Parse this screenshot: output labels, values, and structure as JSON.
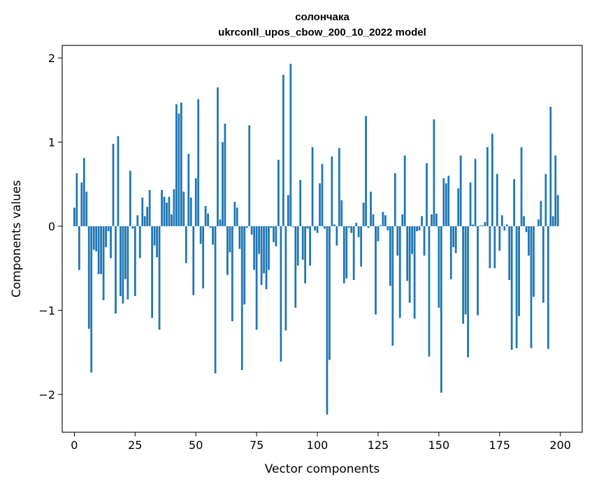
{
  "chart_data": {
    "type": "bar",
    "title_line1": "солончака",
    "title_line2": "ukrconll_upos_cbow_200_10_2022 model",
    "xlabel": "Vector components",
    "ylabel": "Components values",
    "xlim": [
      -5,
      209
    ],
    "ylim": [
      -2.45,
      2.15
    ],
    "xticks": [
      0,
      25,
      50,
      75,
      100,
      125,
      150,
      175,
      200
    ],
    "yticks": [
      -2,
      -1,
      0,
      1,
      2
    ],
    "ytick_labels": [
      "−2",
      "−1",
      "0",
      "1",
      "2"
    ],
    "bar_color": "#1f77b4",
    "grid": false,
    "values": [
      0.22,
      0.63,
      -0.52,
      0.52,
      0.81,
      0.41,
      -1.22,
      -1.74,
      -0.28,
      -0.3,
      -0.57,
      -0.57,
      -0.88,
      -0.25,
      -0.06,
      -0.38,
      0.98,
      -1.04,
      1.07,
      -0.83,
      -0.92,
      -0.63,
      -0.87,
      0.66,
      -0.03,
      -0.83,
      0.13,
      -0.38,
      0.34,
      0.12,
      0.23,
      0.43,
      -1.09,
      -0.23,
      -0.37,
      -1.23,
      0.43,
      0.35,
      0.28,
      0.35,
      0.14,
      0.44,
      1.45,
      1.34,
      1.47,
      0.41,
      -0.44,
      0.86,
      0.34,
      -0.82,
      0.57,
      1.51,
      -0.21,
      -0.74,
      0.24,
      0.15,
      -0.02,
      -0.22,
      -1.75,
      1.65,
      0.08,
      1.0,
      1.22,
      -0.58,
      -0.31,
      -1.13,
      0.29,
      0.22,
      -0.27,
      -1.71,
      -0.93,
      -0.02,
      1.2,
      -0.1,
      -0.52,
      -1.23,
      -0.33,
      -0.7,
      -0.56,
      -0.75,
      -0.52,
      -0.02,
      -0.19,
      -0.24,
      0.79,
      -1.61,
      1.8,
      -1.24,
      0.37,
      1.93,
      -0.01,
      -0.97,
      -0.47,
      0.55,
      -0.4,
      -0.68,
      -0.03,
      -0.47,
      0.94,
      -0.05,
      -0.08,
      0.51,
      0.74,
      -0.03,
      -2.24,
      -1.59,
      0.83,
      0.02,
      -0.23,
      0.93,
      0.31,
      -0.68,
      -0.62,
      -0.02,
      -0.08,
      -0.64,
      0.04,
      -0.13,
      -0.48,
      0.28,
      1.31,
      -0.02,
      0.41,
      0.14,
      -1.05,
      -0.18,
      0.01,
      0.17,
      0.13,
      -0.05,
      -0.71,
      -1.42,
      0.63,
      -0.35,
      -1.09,
      0.14,
      0.84,
      -0.65,
      -0.91,
      -0.33,
      -1.1,
      -0.06,
      -0.05,
      0.12,
      -0.35,
      0.75,
      -1.55,
      0.14,
      1.27,
      0.15,
      -0.97,
      -1.98,
      0.57,
      0.51,
      0.6,
      -0.63,
      -0.25,
      -0.32,
      0.45,
      0.84,
      -1.16,
      -1.05,
      -1.56,
      0.52,
      0.02,
      0.8,
      -1.06,
      0.01,
      0.01,
      0.05,
      0.94,
      -0.5,
      1.1,
      -0.5,
      0.62,
      -0.29,
      0.13,
      -0.05,
      0.02,
      -0.64,
      -1.47,
      0.56,
      -1.45,
      -1.07,
      0.94,
      0.12,
      -0.07,
      -0.35,
      -1.45,
      -0.84,
      0.0,
      0.08,
      0.3,
      -0.91,
      0.62,
      -1.46,
      1.42,
      0.12,
      0.84,
      0.37
    ]
  }
}
